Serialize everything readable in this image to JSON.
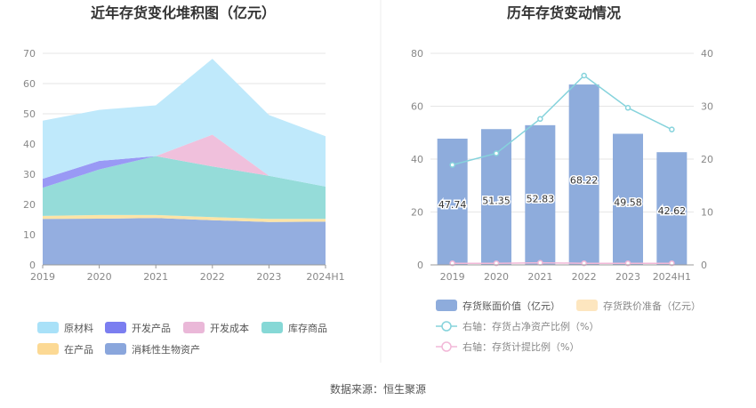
{
  "source_text": "数据来源：恒生聚源",
  "chart_data": [
    {
      "type": "area",
      "title": "近年存货变化堆积图（亿元）",
      "x": [
        "2019",
        "2020",
        "2021",
        "2022",
        "2023",
        "2024H1"
      ],
      "ylim": [
        0,
        70
      ],
      "yticks": [
        0,
        10,
        20,
        30,
        40,
        50,
        60,
        70
      ],
      "grid": true,
      "legend_position": "bottom",
      "series": [
        {
          "name": "消耗性生物资产",
          "color": "#94aee0",
          "values": [
            15.2,
            15.3,
            15.5,
            14.8,
            14.2,
            14.3
          ]
        },
        {
          "name": "在产品",
          "color": "#fde4a6",
          "values": [
            1.0,
            1.2,
            1.0,
            1.0,
            1.0,
            0.9
          ]
        },
        {
          "name": "库存商品",
          "color": "#95dcd9",
          "values": [
            9.3,
            15.1,
            19.5,
            16.8,
            14.3,
            10.7
          ]
        },
        {
          "name": "开发成本",
          "color": "#f0c0dc",
          "values": [
            0.0,
            0.0,
            0.0,
            10.5,
            0.0,
            0.0
          ]
        },
        {
          "name": "开发产品",
          "color": "#9999f5",
          "values": [
            3.0,
            2.8,
            0.0,
            0.0,
            0.0,
            0.0
          ]
        },
        {
          "name": "原材料",
          "color": "#bfe9fb",
          "values": [
            19.2,
            16.9,
            16.8,
            25.1,
            20.1,
            16.7
          ]
        }
      ],
      "legend": [
        {
          "name": "原材料",
          "color": "#a9e1f8"
        },
        {
          "name": "开发产品",
          "color": "#7b7ef0"
        },
        {
          "name": "开发成本",
          "color": "#eab8d8"
        },
        {
          "name": "库存商品",
          "color": "#86d8d6"
        },
        {
          "name": "在产品",
          "color": "#fcd994"
        },
        {
          "name": "消耗性生物资产",
          "color": "#8aa6dc"
        }
      ]
    },
    {
      "type": "bar",
      "title": "历年存货变动情况",
      "categories": [
        "2019",
        "2020",
        "2021",
        "2022",
        "2023",
        "2024H1"
      ],
      "ylim": [
        0,
        80
      ],
      "yticks": [
        0,
        20,
        40,
        60,
        80
      ],
      "y2lim": [
        0,
        40
      ],
      "y2ticks": [
        0,
        10,
        20,
        30,
        40
      ],
      "grid": true,
      "legend_position": "bottom",
      "series": [
        {
          "name": "存货账面价值（亿元）",
          "kind": "bar",
          "axis": "left",
          "color": "#8eacdc",
          "values": [
            47.74,
            51.35,
            52.83,
            68.22,
            49.58,
            42.62
          ]
        },
        {
          "name": "存货跌价准备（亿元）",
          "kind": "bar",
          "axis": "left",
          "color": "#fde6bf",
          "values": [
            0,
            0,
            0,
            0,
            0,
            0
          ]
        },
        {
          "name": "右轴：存货占净资产比例（%）",
          "kind": "line",
          "axis": "right",
          "color": "#86d3dc",
          "values": [
            18.9,
            21.1,
            27.6,
            35.8,
            29.7,
            25.6
          ]
        },
        {
          "name": "右轴：存货计提比例（%）",
          "kind": "line",
          "axis": "right",
          "color": "#f2b8d8",
          "values": [
            0.3,
            0.3,
            0.4,
            0.3,
            0.3,
            0.3
          ]
        }
      ],
      "data_labels": [
        "47.74",
        "51.35",
        "52.83",
        "68.22",
        "49.58",
        "42.62"
      ]
    }
  ]
}
